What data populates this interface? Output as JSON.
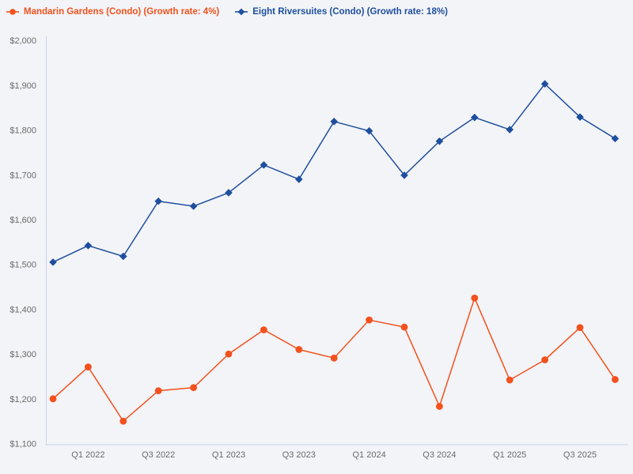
{
  "page": {
    "background": "#f2f4f7"
  },
  "legend": {
    "items": [
      {
        "label": "Mandarin Gardens (Condo) (Growth rate: 4%)",
        "color": "#f4511e",
        "marker": "circle"
      },
      {
        "label": "Eight Riversuites (Condo) (Growth rate: 18%)",
        "color": "#1f4e9f",
        "marker": "diamond"
      }
    ]
  },
  "chart_data": {
    "type": "line",
    "x": [
      "Q4 2021",
      "Q1 2022",
      "Q2 2022",
      "Q3 2022",
      "Q4 2022",
      "Q1 2023",
      "Q2 2023",
      "Q3 2023",
      "Q4 2023",
      "Q1 2024",
      "Q2 2024",
      "Q3 2024",
      "Q4 2024",
      "Q1 2025",
      "Q2 2025",
      "Q3 2025",
      "Q4 2025"
    ],
    "x_tick_labels_shown": [
      "Q1 2022",
      "Q3 2022",
      "Q1 2023",
      "Q3 2023",
      "Q1 2024",
      "Q3 2024",
      "Q1 2025",
      "Q3 2025"
    ],
    "x_tick_indices": [
      1,
      3,
      5,
      7,
      9,
      11,
      13,
      15
    ],
    "series": [
      {
        "name": "Mandarin Gardens (Condo)",
        "growth_rate": "4%",
        "marker": "circle",
        "color": "#f4511e",
        "values": [
          1200,
          1271,
          1150,
          1218,
          1225,
          1300,
          1354,
          1310,
          1291,
          1376,
          1360,
          1183,
          1425,
          1242,
          1287,
          1359,
          1243
        ]
      },
      {
        "name": "Eight Riversuites (Condo)",
        "growth_rate": "18%",
        "marker": "diamond",
        "color": "#1f4e9f",
        "values": [
          1505,
          1542,
          1518,
          1641,
          1630,
          1660,
          1722,
          1690,
          1819,
          1798,
          1699,
          1775,
          1828,
          1801,
          1903,
          1829,
          1781
        ]
      }
    ],
    "ylim": [
      1100,
      2000
    ],
    "ytick_interval": 100,
    "ytick_labels": [
      "$1,100",
      "$1,200",
      "$1,300",
      "$1,400",
      "$1,500",
      "$1,600",
      "$1,700",
      "$1,800",
      "$1,900",
      "$2,000"
    ],
    "currency_prefix": "$",
    "title": "",
    "xlabel": "",
    "ylabel": "",
    "grid": false,
    "legend_position": "top-left",
    "axis_color": "#c9d3e6",
    "tick_label_color": "#6a6a6a"
  }
}
